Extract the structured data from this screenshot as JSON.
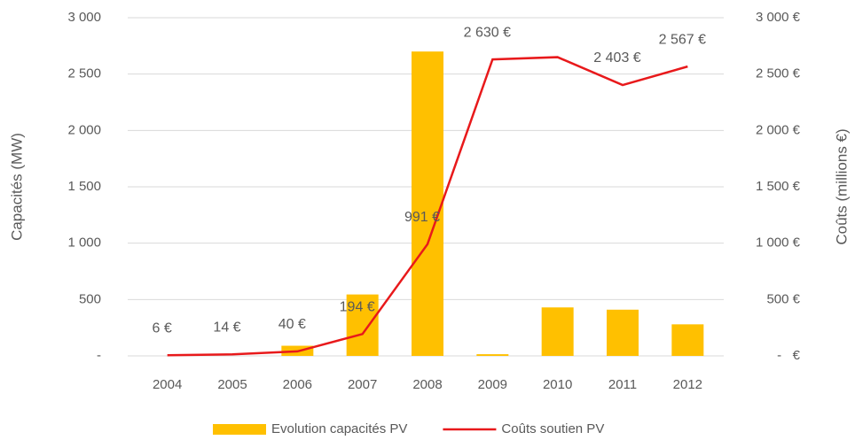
{
  "chart_data": {
    "type": "bar+line",
    "y_label": "Capacités (MW)",
    "y2_label": "Coûts (millions €)",
    "categories": [
      "2004",
      "2005",
      "2006",
      "2007",
      "2008",
      "2009",
      "2010",
      "2011",
      "2012"
    ],
    "series": [
      {
        "name": "Evolution capacités PV",
        "type": "bar",
        "color": "#ffc000",
        "axis": "y",
        "values": [
          0,
          0,
          90,
          545,
          2700,
          15,
          430,
          410,
          280
        ]
      },
      {
        "name": "Coûts soutien PV",
        "type": "line",
        "color": "#e8191b",
        "axis": "y2",
        "values": [
          6,
          14,
          40,
          194,
          991,
          2630,
          2650,
          2403,
          2567
        ],
        "value_labels": [
          "6 €",
          "14 €",
          "40 €",
          "194 €",
          "991 €",
          "2 630 €",
          null,
          "2 403 €",
          "2 567 €"
        ]
      }
    ],
    "ylim": [
      0,
      3000
    ],
    "yticks": [
      {
        "value": 0,
        "label": "-"
      },
      500,
      {
        "value": 1000,
        "label": "1 000"
      },
      {
        "value": 1500,
        "label": "1 500"
      },
      {
        "value": 2000,
        "label": "2 000"
      },
      {
        "value": 2500,
        "label": "2 500"
      },
      {
        "value": 3000,
        "label": "3 000"
      }
    ],
    "y2lim": [
      0,
      3000
    ],
    "y2ticks": [
      {
        "value": 0,
        "label": "-   €"
      },
      {
        "value": 500,
        "label": "500 €"
      },
      {
        "value": 1000,
        "label": "1 000 €"
      },
      {
        "value": 1500,
        "label": "1 500 €"
      },
      {
        "value": 2000,
        "label": "2 000 €"
      },
      {
        "value": 2500,
        "label": "2 500 €"
      },
      {
        "value": 3000,
        "label": "3 000 €"
      }
    ],
    "grid": true,
    "legend": "bottom"
  }
}
